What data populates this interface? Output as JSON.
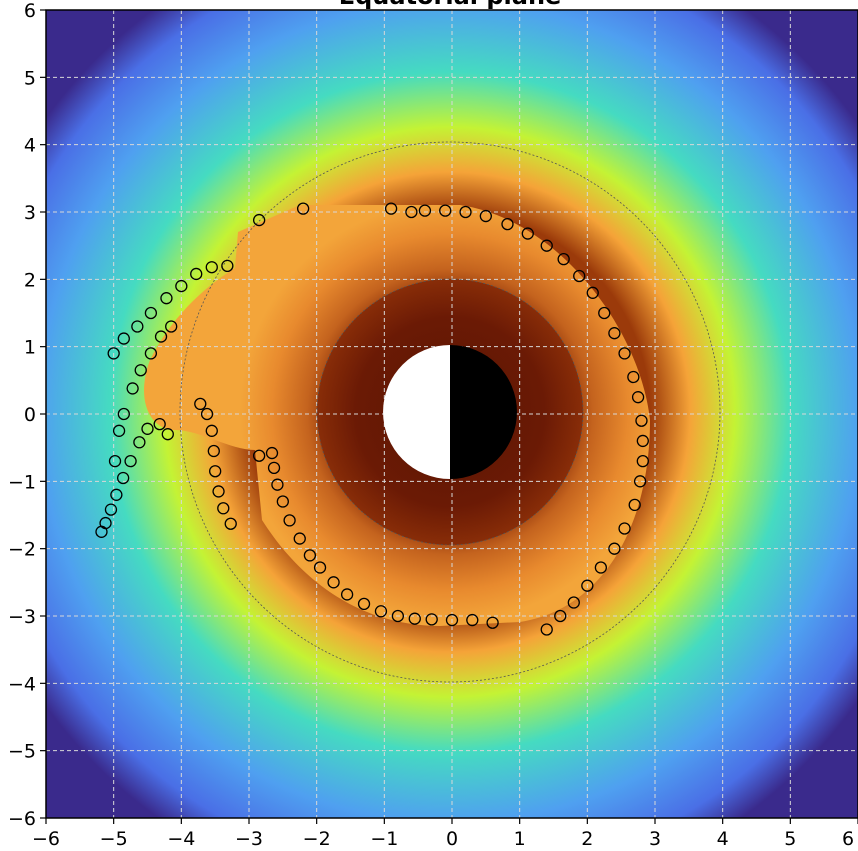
{
  "chart_data": {
    "type": "scatter",
    "title": "Equatorial plane",
    "xlabel": "",
    "ylabel": "",
    "xlim": [
      -6,
      6
    ],
    "ylim": [
      -6,
      6
    ],
    "x_ticks": [
      -6,
      -5,
      -4,
      -3,
      -2,
      -1,
      0,
      1,
      2,
      3,
      4,
      5,
      6
    ],
    "y_ticks": [
      -6,
      -5,
      -4,
      -3,
      -2,
      -1,
      0,
      1,
      2,
      3,
      4,
      5,
      6
    ],
    "x_tick_labels": [
      "−6",
      "−5",
      "−4",
      "−3",
      "−2",
      "−1",
      "0",
      "1",
      "2",
      "3",
      "4",
      "5",
      "6"
    ],
    "y_tick_labels": [
      "−6",
      "−5",
      "−4",
      "−3",
      "−2",
      "−1",
      "0",
      "1",
      "2",
      "3",
      "4",
      "5",
      "6"
    ],
    "grid": true,
    "background": "colormap field, dark orange/brown near center fading to yellow-green, cyan and blue at large radius",
    "reference_circles_radius": [
      2.0,
      4.0
    ],
    "central_disk_radius": 1.0,
    "colors": {
      "inner_dark": "#6b1a05",
      "ring_brown": "#8a2e08",
      "orange": "#c5621d",
      "light_orange": "#f0a43a",
      "yellow_green": "#b6f035",
      "cyan": "#41d9c0",
      "blue": "#4a87ee",
      "dark_blue": "#3c2a8a",
      "marker_edge": "#000000"
    },
    "series": [
      {
        "marker": "open-circle",
        "points": [
          [
            0.6,
            -3.1
          ],
          [
            0.3,
            -3.06
          ],
          [
            0.0,
            -3.06
          ],
          [
            -0.3,
            -3.05
          ],
          [
            -0.55,
            -3.04
          ],
          [
            -0.8,
            -3.0
          ],
          [
            -1.05,
            -2.93
          ],
          [
            -1.3,
            -2.82
          ],
          [
            -1.55,
            -2.68
          ],
          [
            -1.75,
            -2.5
          ],
          [
            -1.95,
            -2.28
          ],
          [
            -2.1,
            -2.1
          ],
          [
            -2.25,
            -1.85
          ],
          [
            -2.4,
            -1.58
          ],
          [
            -2.5,
            -1.3
          ],
          [
            -2.58,
            -1.05
          ],
          [
            -2.63,
            -0.8
          ],
          [
            -2.66,
            -0.58
          ],
          [
            -2.85,
            -0.62
          ],
          [
            1.4,
            -3.2
          ],
          [
            1.6,
            -3.0
          ],
          [
            1.8,
            -2.8
          ],
          [
            2.0,
            -2.55
          ],
          [
            2.2,
            -2.28
          ],
          [
            2.4,
            -2.0
          ],
          [
            2.55,
            -1.7
          ],
          [
            2.7,
            -1.35
          ],
          [
            2.78,
            -1.0
          ],
          [
            2.82,
            -0.7
          ],
          [
            2.82,
            -0.4
          ],
          [
            2.8,
            -0.1
          ],
          [
            2.75,
            0.25
          ],
          [
            2.68,
            0.55
          ],
          [
            2.55,
            0.9
          ],
          [
            2.4,
            1.2
          ],
          [
            2.25,
            1.5
          ],
          [
            2.08,
            1.8
          ],
          [
            1.88,
            2.05
          ],
          [
            1.65,
            2.3
          ],
          [
            1.4,
            2.5
          ],
          [
            1.12,
            2.68
          ],
          [
            0.82,
            2.82
          ],
          [
            0.5,
            2.94
          ],
          [
            0.2,
            3.0
          ],
          [
            -0.1,
            3.02
          ],
          [
            -0.4,
            3.02
          ],
          [
            -0.6,
            3.0
          ],
          [
            -0.9,
            3.05
          ],
          [
            -2.2,
            3.05
          ],
          [
            -2.85,
            2.88
          ],
          [
            -3.72,
            0.15
          ],
          [
            -3.62,
            0.0
          ],
          [
            -3.55,
            -0.25
          ],
          [
            -3.52,
            -0.55
          ],
          [
            -3.5,
            -0.85
          ],
          [
            -3.45,
            -1.15
          ],
          [
            -3.38,
            -1.4
          ],
          [
            -3.27,
            -1.63
          ],
          [
            -4.2,
            -0.3
          ],
          [
            -4.32,
            -0.15
          ],
          [
            -4.5,
            -0.22
          ],
          [
            -4.62,
            -0.42
          ],
          [
            -4.75,
            -0.7
          ],
          [
            -4.86,
            -0.95
          ],
          [
            -4.96,
            -1.2
          ],
          [
            -5.04,
            -1.42
          ],
          [
            -5.12,
            -1.62
          ],
          [
            -5.18,
            -1.75
          ],
          [
            -5.0,
            0.9
          ],
          [
            -4.85,
            1.12
          ],
          [
            -4.65,
            1.3
          ],
          [
            -4.45,
            1.5
          ],
          [
            -4.22,
            1.72
          ],
          [
            -4.0,
            1.9
          ],
          [
            -3.78,
            2.08
          ],
          [
            -3.55,
            2.18
          ],
          [
            -3.32,
            2.2
          ],
          [
            -4.15,
            1.3
          ],
          [
            -4.3,
            1.15
          ],
          [
            -4.45,
            0.9
          ],
          [
            -4.6,
            0.65
          ],
          [
            -4.72,
            0.38
          ],
          [
            -4.85,
            0.0
          ],
          [
            -4.92,
            -0.25
          ],
          [
            -4.98,
            -0.7
          ]
        ]
      }
    ]
  }
}
